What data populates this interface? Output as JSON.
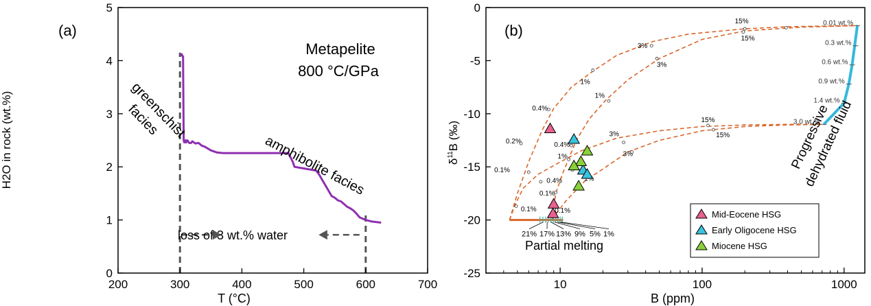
{
  "chart_data": [
    {
      "panel_label": "(a)",
      "type": "line",
      "title_lines": [
        "Metapelite",
        "800 °C/GPa"
      ],
      "xlabel": "T (°C)",
      "ylabel": "H2O in rock (wt.%)",
      "xlim": [
        200,
        700
      ],
      "ylim": [
        0,
        5
      ],
      "xticks": [
        "200",
        "300",
        "400",
        "500",
        "600",
        "700"
      ],
      "yticks": [
        "0",
        "1",
        "2",
        "3",
        "4",
        "5"
      ],
      "grid": false,
      "colors": {
        "curve": "#8e2fb0",
        "marker": "#555555"
      },
      "series": [
        {
          "x": [
            300,
            303,
            303,
            305,
            306,
            307,
            309,
            310,
            312,
            315,
            318,
            320,
            325,
            330,
            335,
            340,
            350,
            360,
            370,
            380,
            400,
            420,
            450,
            475,
            482,
            485,
            500,
            520,
            525,
            530,
            535,
            540,
            545,
            550,
            555,
            560,
            565,
            570,
            575,
            580,
            585,
            590,
            600,
            610,
            625
          ],
          "y": [
            4.12,
            4.12,
            4.1,
            4.08,
            2.5,
            2.46,
            2.5,
            2.46,
            2.5,
            2.45,
            2.45,
            2.48,
            2.44,
            2.45,
            2.4,
            2.38,
            2.31,
            2.27,
            2.26,
            2.26,
            2.26,
            2.26,
            2.26,
            2.26,
            2.1,
            2.0,
            1.97,
            1.93,
            1.85,
            1.75,
            1.65,
            1.55,
            1.45,
            1.42,
            1.37,
            1.35,
            1.3,
            1.25,
            1.22,
            1.18,
            1.12,
            1.05,
            1.0,
            0.97,
            0.95
          ]
        }
      ],
      "vertical_markers": [
        300,
        600
      ],
      "annotations": {
        "greenschist": [
          "greenschist",
          "facies"
        ],
        "amphibolite": "amphibolite facies",
        "water_loss": "loss of 3 wt.% water"
      }
    },
    {
      "panel_label": "(b)",
      "type": "scatter",
      "xlabel": "B (ppm)",
      "ylabel": "δ11B (‰)",
      "ylabel_parts": {
        "delta": "δ",
        "superscript": "11",
        "tail": "B (‰)"
      },
      "x_scale": "log",
      "xlim": [
        3,
        1400
      ],
      "ylim": [
        -25,
        0
      ],
      "xticks": [
        {
          "value": 10,
          "label": "10"
        },
        {
          "value": 100,
          "label": "100"
        },
        {
          "value": 1000,
          "label": "1000"
        }
      ],
      "yticks": [
        "0",
        "-5",
        "-10",
        "-15",
        "-20",
        "-25"
      ],
      "grid": false,
      "colors": {
        "mixing_curves": "#d8662a",
        "fluid_path": "#35b8dc",
        "melting_path": "#d8662a",
        "melting_ticks": "#3cb8a8"
      },
      "fluid_path": {
        "label": "Progressive dehydrated fluid",
        "label_lines": [
          "Progressive",
          "dehydrated fluid"
        ],
        "x": [
          720,
          1000,
          1080,
          1140,
          1240
        ],
        "y": [
          -11.0,
          -9.0,
          -7.2,
          -5.4,
          -1.7
        ],
        "tick_labels": [
          {
            "text": "0.01 wt.%",
            "x": 1240,
            "y": -1.7
          },
          {
            "text": "0.3 wt.%",
            "x": 1205,
            "y": -3.6
          },
          {
            "text": "0.6 wt.%",
            "x": 1140,
            "y": -5.4
          },
          {
            "text": "0.9 wt.%",
            "x": 1080,
            "y": -7.2
          },
          {
            "text": "1.4 wt.%",
            "x": 1000,
            "y": -9.0
          },
          {
            "text": "3.0 wt.%",
            "x": 720,
            "y": -11.0
          }
        ]
      },
      "mixing_curves": [
        {
          "x": [
            4.4,
            5.0,
            6.0,
            7.5,
            9.0,
            12,
            17,
            25,
            45,
            80,
            200,
            400,
            1240
          ],
          "y": [
            -20,
            -17.5,
            -14.5,
            -11.5,
            -9.5,
            -7.5,
            -6.0,
            -4.5,
            -3.2,
            -2.5,
            -2.0,
            -1.8,
            -1.7
          ]
        },
        {
          "x": [
            8.8,
            9.3,
            10.5,
            13,
            16,
            21,
            30,
            50,
            100,
            200,
            500,
            1240
          ],
          "y": [
            -20,
            -17.5,
            -15.5,
            -12.5,
            -10.5,
            -8.7,
            -6.8,
            -4.8,
            -3.0,
            -2.2,
            -1.85,
            -1.7
          ]
        },
        {
          "x": [
            4.4,
            4.8,
            5.5,
            7,
            9.5,
            14,
            25,
            50,
            100,
            200,
            400,
            720
          ],
          "y": [
            -20,
            -18.6,
            -17.0,
            -15.7,
            -14.7,
            -13.5,
            -12.3,
            -11.6,
            -11.2,
            -11.05,
            -11.0,
            -11.0
          ]
        },
        {
          "x": [
            8.8,
            9.5,
            11,
            15,
            20,
            30,
            50,
            100,
            200,
            400,
            720
          ],
          "y": [
            -20,
            -19.3,
            -18.2,
            -16.3,
            -15.2,
            -13.6,
            -12.5,
            -11.6,
            -11.2,
            -11.05,
            -11.0
          ]
        }
      ],
      "curve_labels": [
        {
          "text": "15%",
          "x": 190,
          "y": -1.5
        },
        {
          "text": "15%",
          "x": 210,
          "y": -3.1
        },
        {
          "text": "3%",
          "x": 38,
          "y": -3.8
        },
        {
          "text": "3%",
          "x": 52,
          "y": -5.6
        },
        {
          "text": "1%",
          "x": 15,
          "y": -7.2
        },
        {
          "text": "1%",
          "x": 19,
          "y": -8.5
        },
        {
          "text": "0.4%",
          "x": 7.2,
          "y": -9.7
        },
        {
          "text": "0.2%",
          "x": 4.7,
          "y": -12.8
        },
        {
          "text": "0.4%",
          "x": 10.3,
          "y": -13.1
        },
        {
          "text": "1%",
          "x": 10.4,
          "y": -14.2
        },
        {
          "text": "0.1%",
          "x": 3.9,
          "y": -15.5
        },
        {
          "text": "0.4%",
          "x": 9.1,
          "y": -16.5
        },
        {
          "text": "0.1%",
          "x": 8.1,
          "y": -17.7
        },
        {
          "text": "0.1%",
          "x": 6.0,
          "y": -19.2
        },
        {
          "text": "0.1%",
          "x": 10.4,
          "y": -19.3
        },
        {
          "text": "15%",
          "x": 110,
          "y": -10.8
        },
        {
          "text": "15%",
          "x": 140,
          "y": -12.2
        },
        {
          "text": "3%",
          "x": 24,
          "y": -12.1
        },
        {
          "text": "3%",
          "x": 30,
          "y": -14.0
        },
        {
          "text": "1%",
          "x": 16,
          "y": -16.3
        }
      ],
      "partial_melting": {
        "label": "Partial melting",
        "x": [
          4.4,
          10.5
        ],
        "y": -20,
        "tick_labels": [
          "21%",
          "17%",
          "13%",
          "9%",
          "5%",
          "1%"
        ]
      },
      "series": [
        {
          "name": "Mid-Eocene HSG",
          "marker": "triangle",
          "color": "#e8608f",
          "points": [
            {
              "x": 8.5,
              "y": -11.4
            },
            {
              "x": 9.0,
              "y": -18.5
            },
            {
              "x": 8.9,
              "y": -19.4
            }
          ]
        },
        {
          "name": "Early Oligocene HSG",
          "marker": "triangle",
          "color": "#39c3de",
          "points": [
            {
              "x": 12.5,
              "y": -12.4
            },
            {
              "x": 14.5,
              "y": -15.3
            },
            {
              "x": 15.5,
              "y": -15.7
            }
          ]
        },
        {
          "name": "Miocene HSG",
          "marker": "triangle",
          "color": "#8ad23a",
          "points": [
            {
              "x": 15.5,
              "y": -13.5
            },
            {
              "x": 14,
              "y": -14.5
            },
            {
              "x": 12.5,
              "y": -14.9
            },
            {
              "x": 13.5,
              "y": -16.8
            }
          ]
        }
      ],
      "legend_position": "bottom-right"
    }
  ]
}
